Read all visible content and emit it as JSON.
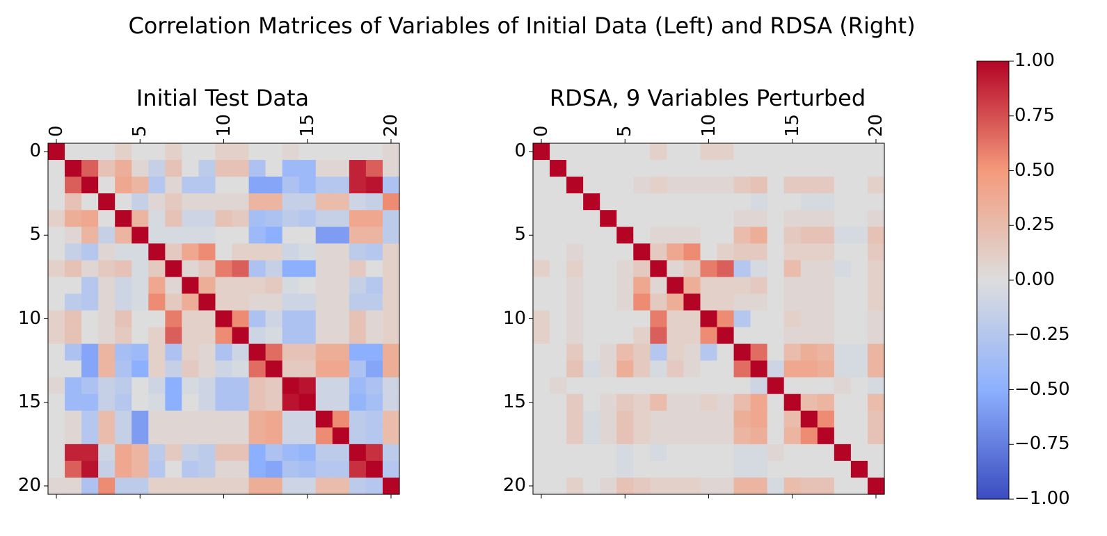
{
  "title": "Correlation Matrices of Variables of Initial Data (Left) and RDSA (Right)",
  "chart_data": {
    "type": "heatmap",
    "colormap": "coolwarm",
    "vmin": -1.0,
    "vmax": 1.0,
    "n": 21,
    "ticks": [
      0,
      5,
      10,
      15,
      20
    ],
    "tick_labels": [
      "0",
      "5",
      "10",
      "15",
      "20"
    ],
    "colorbar": {
      "ticks": [
        1.0,
        0.75,
        0.5,
        0.25,
        0.0,
        -0.25,
        -0.5,
        -0.75,
        -1.0
      ],
      "tick_labels": [
        "1.00",
        "0.75",
        "0.50",
        "0.25",
        "0.00",
        "−0.25",
        "−0.50",
        "−0.75",
        "−1.00"
      ]
    },
    "matrices": [
      {
        "title": "Initial Test Data",
        "values": [
          [
            1,
            0,
            0,
            0,
            0.1,
            0,
            0,
            0.1,
            0,
            0,
            0.1,
            0.1,
            0,
            0,
            0.05,
            0,
            0,
            0,
            0,
            0,
            0.05
          ],
          [
            0,
            1,
            0.7,
            0.2,
            0.35,
            0.05,
            -0.15,
            0.2,
            0,
            -0.2,
            0.2,
            0.2,
            -0.3,
            0,
            -0.4,
            -0.4,
            0.05,
            0.05,
            0.9,
            0.7,
            0.05
          ],
          [
            0,
            0.7,
            1,
            0,
            0.4,
            0.3,
            -0.25,
            0.05,
            -0.25,
            -0.25,
            0,
            0,
            -0.55,
            -0.55,
            -0.3,
            -0.4,
            -0.25,
            -0.25,
            0.9,
            0.95,
            -0.3
          ],
          [
            0,
            0.2,
            0,
            1,
            0,
            -0.15,
            0.05,
            0.15,
            0.05,
            0.05,
            0.05,
            0.05,
            0.3,
            0.3,
            -0.15,
            -0.15,
            0.25,
            0.25,
            -0.1,
            -0.15,
            0.55
          ],
          [
            0.1,
            0.35,
            0.4,
            0,
            1,
            0.3,
            -0.05,
            0.2,
            -0.1,
            -0.1,
            0.2,
            0.15,
            -0.35,
            -0.3,
            -0.2,
            -0.25,
            -0.15,
            -0.15,
            0.4,
            0.4,
            -0.2
          ],
          [
            0,
            0.05,
            0.3,
            -0.15,
            0.3,
            1,
            -0.05,
            -0.05,
            -0.05,
            -0.05,
            0,
            0,
            -0.4,
            -0.5,
            0,
            0,
            -0.6,
            -0.6,
            0.3,
            0.3,
            -0.2
          ],
          [
            0,
            -0.15,
            -0.25,
            0.05,
            -0.05,
            -0.05,
            1,
            0.15,
            0.4,
            0.55,
            0,
            0.1,
            0.1,
            0.1,
            -0.1,
            -0.05,
            0.05,
            0.05,
            -0.2,
            -0.25,
            0.1
          ],
          [
            0.1,
            0.2,
            0.05,
            0.15,
            0.2,
            -0.05,
            0.15,
            1,
            0.05,
            0.15,
            0.6,
            0.7,
            -0.3,
            -0.15,
            -0.5,
            -0.5,
            0.05,
            0.05,
            0.15,
            0,
            0.1
          ],
          [
            0,
            0,
            -0.25,
            0.05,
            -0.1,
            -0.05,
            0.4,
            0.05,
            1,
            0.35,
            0.1,
            0.1,
            0.1,
            0.15,
            -0.05,
            0,
            0.05,
            0.05,
            -0.15,
            -0.25,
            0.1
          ],
          [
            0,
            -0.2,
            -0.25,
            0.05,
            -0.1,
            -0.05,
            0.55,
            0.15,
            0.35,
            1,
            0.1,
            0.1,
            0.05,
            0.05,
            -0.1,
            -0.1,
            0.05,
            0.05,
            -0.2,
            -0.2,
            0.1
          ],
          [
            0.1,
            0.2,
            0,
            0.05,
            0.2,
            0,
            0,
            0.6,
            0.1,
            0.1,
            1,
            0.55,
            -0.3,
            -0.1,
            -0.3,
            -0.3,
            0.05,
            0.05,
            0.2,
            0.05,
            0.1
          ],
          [
            0.1,
            0.2,
            0,
            0.05,
            0.15,
            0,
            0.1,
            0.7,
            0.1,
            0.1,
            0.55,
            1,
            -0.1,
            -0.05,
            -0.3,
            -0.3,
            0.05,
            0.05,
            0.2,
            0.05,
            0.1
          ],
          [
            0,
            -0.3,
            -0.55,
            0.3,
            -0.35,
            -0.4,
            0.1,
            -0.3,
            0.1,
            0.05,
            -0.3,
            -0.1,
            1,
            0.65,
            0.2,
            0.2,
            0.35,
            0.35,
            -0.5,
            -0.5,
            0.35
          ],
          [
            0,
            0,
            -0.55,
            0.3,
            -0.3,
            -0.5,
            0.1,
            -0.15,
            0.15,
            0.05,
            -0.1,
            -0.05,
            0.65,
            1,
            0.15,
            0.15,
            0.4,
            0.4,
            -0.3,
            -0.55,
            0.35
          ],
          [
            0.05,
            -0.4,
            -0.3,
            -0.15,
            -0.2,
            0,
            -0.1,
            -0.5,
            -0.05,
            -0.1,
            -0.3,
            -0.3,
            0.2,
            0.15,
            1,
            0.95,
            -0.1,
            -0.1,
            -0.4,
            -0.3,
            -0.1
          ],
          [
            0,
            -0.4,
            -0.4,
            -0.15,
            -0.25,
            0,
            -0.05,
            -0.5,
            0,
            -0.1,
            -0.3,
            -0.3,
            0.2,
            0.15,
            0.95,
            1,
            -0.1,
            -0.1,
            -0.45,
            -0.35,
            -0.1
          ],
          [
            0,
            0.05,
            -0.25,
            0.25,
            -0.15,
            -0.6,
            0.05,
            0.05,
            0.05,
            0.05,
            0.05,
            0.05,
            0.35,
            0.4,
            -0.1,
            -0.1,
            1,
            0.55,
            -0.2,
            -0.25,
            0.25
          ],
          [
            0,
            0.05,
            -0.25,
            0.25,
            -0.15,
            -0.6,
            0.05,
            0.05,
            0.05,
            0.05,
            0.05,
            0.05,
            0.35,
            0.4,
            -0.1,
            -0.1,
            0.55,
            1,
            -0.2,
            -0.25,
            0.25
          ],
          [
            0,
            0.9,
            0.9,
            -0.1,
            0.4,
            0.3,
            -0.2,
            0.15,
            -0.15,
            -0.2,
            0.2,
            0.2,
            -0.5,
            -0.3,
            -0.4,
            -0.45,
            -0.2,
            -0.2,
            1,
            0.85,
            -0.2
          ],
          [
            0,
            0.7,
            0.95,
            -0.15,
            0.4,
            0.3,
            -0.25,
            0,
            -0.25,
            -0.2,
            0.05,
            0.05,
            -0.5,
            -0.55,
            -0.3,
            -0.35,
            -0.25,
            -0.25,
            0.85,
            1,
            -0.25
          ],
          [
            0.05,
            0.05,
            -0.3,
            0.55,
            -0.2,
            -0.2,
            0.1,
            0.1,
            0.1,
            0.1,
            0.1,
            0.1,
            0.35,
            0.35,
            -0.1,
            -0.1,
            0.25,
            0.25,
            -0.2,
            -0.25,
            1
          ]
        ]
      },
      {
        "title": "RDSA, 9 Variables Perturbed",
        "values": [
          [
            1,
            0,
            0,
            0,
            0,
            0,
            0,
            0.1,
            0,
            0,
            0.1,
            0.1,
            0,
            0,
            0,
            0,
            0,
            0,
            0,
            0,
            0
          ],
          [
            0,
            1,
            0,
            0,
            0,
            0,
            0,
            0,
            0,
            0,
            0,
            0,
            0,
            0,
            0,
            0,
            0,
            0,
            0,
            0,
            0
          ],
          [
            0,
            0,
            1,
            0,
            0,
            0,
            0.05,
            0.1,
            0.05,
            0.05,
            0.05,
            0.05,
            0.15,
            0.2,
            0,
            0.15,
            0.15,
            0.15,
            0,
            0,
            0.1
          ],
          [
            0,
            0,
            0,
            1,
            0,
            0,
            0,
            0,
            0,
            0,
            0,
            0,
            0,
            -0.05,
            0,
            0,
            -0.05,
            -0.05,
            0,
            0,
            0
          ],
          [
            0,
            0,
            0,
            0,
            1,
            0,
            0,
            0,
            0,
            0,
            0,
            0,
            0.05,
            0.05,
            0,
            0.05,
            0.05,
            0.05,
            0,
            0,
            0.05
          ],
          [
            0,
            0,
            0,
            0,
            0,
            1,
            0,
            0.05,
            0.05,
            0.05,
            0,
            0,
            0.25,
            0.35,
            0,
            0.15,
            0.2,
            0.2,
            -0.05,
            -0.05,
            0.2
          ],
          [
            0,
            0,
            0.05,
            0,
            0,
            0,
            1,
            0.15,
            0.4,
            0.55,
            0,
            0.1,
            0.15,
            0.15,
            0,
            0.1,
            0.1,
            0.1,
            0,
            0,
            0.15
          ],
          [
            0.1,
            0,
            0.1,
            0,
            0,
            0.05,
            0.15,
            1,
            0.05,
            0.15,
            0.6,
            0.7,
            -0.25,
            -0.05,
            0,
            0.25,
            0.05,
            0.05,
            -0.05,
            0,
            0.1
          ],
          [
            0,
            0,
            0.05,
            0,
            0,
            0.05,
            0.4,
            0.05,
            1,
            0.35,
            0.1,
            0.1,
            0.1,
            0.15,
            0,
            0.05,
            0.05,
            0.05,
            0,
            0,
            0.1
          ],
          [
            0,
            0,
            0.05,
            0,
            0,
            0.05,
            0.55,
            0.15,
            0.35,
            1,
            0.1,
            0.1,
            0.05,
            0.05,
            0,
            0.05,
            0.05,
            0.05,
            0,
            0,
            0.1
          ],
          [
            0.1,
            0,
            0.05,
            0,
            0,
            0,
            0,
            0.6,
            0.1,
            0.1,
            1,
            0.55,
            -0.25,
            0,
            0,
            0.1,
            0.05,
            0.05,
            0,
            0,
            0.05
          ],
          [
            0.1,
            0,
            0.05,
            0,
            0,
            0,
            0.1,
            0.7,
            0.1,
            0.1,
            0.55,
            1,
            0,
            0,
            0,
            0.05,
            0.05,
            0.05,
            0,
            0,
            0.05
          ],
          [
            0,
            0,
            0.15,
            0,
            0.05,
            0.25,
            0.15,
            -0.25,
            0.1,
            0.05,
            -0.25,
            0,
            1,
            0.65,
            0,
            0.25,
            0.35,
            0.3,
            -0.05,
            -0.05,
            0.3
          ],
          [
            0,
            0,
            0.2,
            -0.05,
            0.05,
            0.35,
            0.15,
            -0.05,
            0.15,
            0.05,
            0,
            0,
            0.65,
            1,
            -0.1,
            0.4,
            0.4,
            0.35,
            -0.05,
            -0.05,
            0.3
          ],
          [
            0,
            0.05,
            0,
            0,
            0,
            0,
            0,
            0,
            0,
            0,
            0,
            0,
            0,
            -0.1,
            1,
            0,
            0,
            0,
            0.05,
            0,
            -0.05
          ],
          [
            0,
            0,
            0.15,
            0,
            0.05,
            0.15,
            0.1,
            0.25,
            0.05,
            0.05,
            0.1,
            0.05,
            0.25,
            0.4,
            0,
            1,
            0.25,
            0.3,
            0,
            0,
            0.25
          ],
          [
            0,
            0,
            0.15,
            -0.05,
            0.05,
            0.2,
            0.1,
            0.05,
            0.05,
            0.05,
            0.05,
            0.05,
            0.35,
            0.4,
            0,
            0.25,
            1,
            0.55,
            0,
            0,
            0.2
          ],
          [
            0,
            0,
            0.15,
            -0.05,
            0.05,
            0.2,
            0.1,
            0.05,
            0.05,
            0.05,
            0.05,
            0.05,
            0.3,
            0.35,
            0,
            0.3,
            0.55,
            1,
            0,
            0,
            0.2
          ],
          [
            0,
            0,
            0,
            0,
            0,
            -0.05,
            0,
            -0.05,
            0,
            0,
            0,
            0,
            -0.05,
            -0.05,
            0.05,
            0,
            0,
            0,
            1,
            0,
            0
          ],
          [
            0,
            0,
            0,
            0,
            0,
            -0.05,
            0,
            0,
            0,
            0,
            0,
            0,
            -0.05,
            -0.05,
            0,
            0,
            0,
            0,
            0,
            1,
            0
          ],
          [
            0,
            0,
            0.1,
            0,
            0.05,
            0.2,
            0.15,
            0.1,
            0.1,
            0.1,
            0.05,
            0.05,
            0.3,
            0.3,
            -0.05,
            0.25,
            0.2,
            0.2,
            0,
            0,
            1
          ]
        ]
      }
    ]
  }
}
